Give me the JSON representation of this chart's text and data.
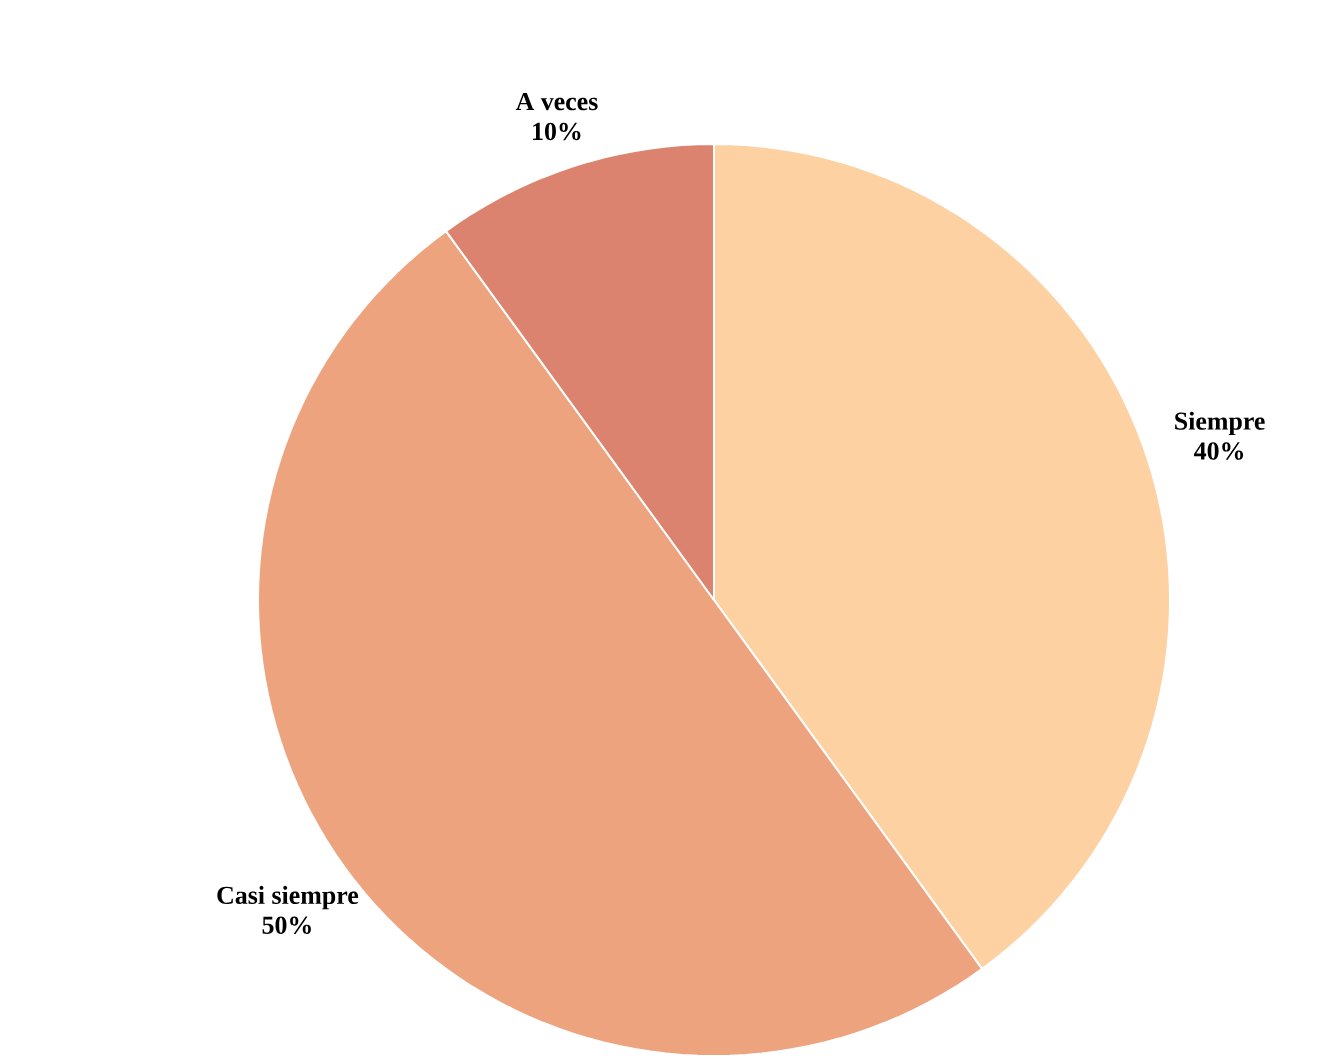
{
  "chart_data": {
    "type": "pie",
    "categories": [
      "Siempre",
      "Casi siempre",
      "A veces"
    ],
    "values": [
      40,
      50,
      10
    ],
    "value_labels": [
      "40%",
      "50%",
      "10%"
    ],
    "colors": [
      "#fdd1a2",
      "#eca37e",
      "#dc8370"
    ]
  }
}
